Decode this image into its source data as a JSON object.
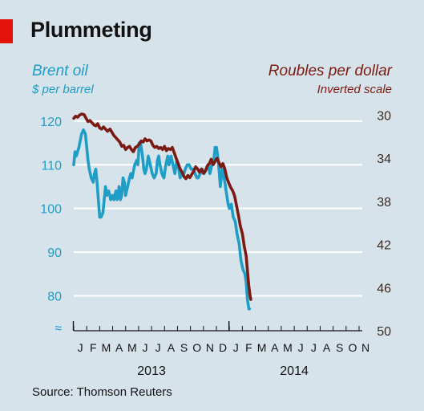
{
  "title": "Plummeting",
  "source": "Source: Thomson Reuters",
  "chart_data": {
    "type": "line",
    "left_axis": {
      "label": "Brent oil",
      "sublabel": "$ per barrel",
      "ticks": [
        80,
        90,
        100,
        110,
        120
      ],
      "range": [
        72,
        122
      ]
    },
    "right_axis": {
      "label": "Roubles per dollar",
      "sublabel": "Inverted scale",
      "ticks": [
        30,
        34,
        38,
        42,
        46,
        50
      ],
      "range": [
        29.75,
        50
      ],
      "inverted": true
    },
    "x_months": [
      "J",
      "F",
      "M",
      "A",
      "M",
      "J",
      "J",
      "A",
      "S",
      "O",
      "N",
      "D",
      "J",
      "F",
      "M",
      "A",
      "M",
      "J",
      "J",
      "A",
      "S",
      "O",
      "N"
    ],
    "years": [
      "2013",
      "2014"
    ],
    "grid": true,
    "colors": {
      "brent": "#1e9dc6",
      "rouble": "#7a1a12"
    },
    "series": [
      {
        "axis": "left",
        "values": [
          [
            0.0,
            110
          ],
          [
            0.1,
            113
          ],
          [
            0.2,
            112
          ],
          [
            0.4,
            114
          ],
          [
            0.6,
            117
          ],
          [
            0.75,
            118
          ],
          [
            0.9,
            117
          ],
          [
            1.0,
            114
          ],
          [
            1.1,
            111
          ],
          [
            1.2,
            109
          ],
          [
            1.35,
            107
          ],
          [
            1.5,
            106
          ],
          [
            1.6,
            108
          ],
          [
            1.7,
            109
          ],
          [
            1.8,
            106
          ],
          [
            1.9,
            102
          ],
          [
            2.0,
            98
          ],
          [
            2.1,
            98
          ],
          [
            2.25,
            99
          ],
          [
            2.35,
            102
          ],
          [
            2.45,
            105
          ],
          [
            2.55,
            103
          ],
          [
            2.7,
            104
          ],
          [
            2.85,
            102
          ],
          [
            3.0,
            103
          ],
          [
            3.1,
            102
          ],
          [
            3.25,
            104
          ],
          [
            3.35,
            102
          ],
          [
            3.5,
            105
          ],
          [
            3.6,
            102
          ],
          [
            3.7,
            103
          ],
          [
            3.8,
            107
          ],
          [
            3.9,
            106
          ],
          [
            4.0,
            103
          ],
          [
            4.15,
            105
          ],
          [
            4.3,
            107
          ],
          [
            4.4,
            108
          ],
          [
            4.5,
            107
          ],
          [
            4.7,
            110
          ],
          [
            4.85,
            111
          ],
          [
            4.95,
            110
          ],
          [
            5.05,
            115
          ],
          [
            5.15,
            115
          ],
          [
            5.3,
            112
          ],
          [
            5.4,
            109
          ],
          [
            5.5,
            108
          ],
          [
            5.6,
            109
          ],
          [
            5.75,
            112
          ],
          [
            5.9,
            110
          ],
          [
            6.05,
            108
          ],
          [
            6.2,
            107
          ],
          [
            6.35,
            108
          ],
          [
            6.45,
            111
          ],
          [
            6.55,
            112
          ],
          [
            6.65,
            110
          ],
          [
            6.8,
            108
          ],
          [
            6.95,
            107
          ],
          [
            7.1,
            110
          ],
          [
            7.25,
            112
          ],
          [
            7.35,
            110
          ],
          [
            7.5,
            112
          ],
          [
            7.65,
            110
          ],
          [
            7.8,
            108
          ],
          [
            7.95,
            111
          ],
          [
            8.1,
            109
          ],
          [
            8.2,
            107
          ],
          [
            8.35,
            108
          ],
          [
            8.5,
            108
          ],
          [
            8.6,
            109
          ],
          [
            8.75,
            110
          ],
          [
            8.9,
            110
          ],
          [
            9.05,
            109
          ],
          [
            9.2,
            109
          ],
          [
            9.35,
            108
          ],
          [
            9.5,
            107
          ],
          [
            9.6,
            107
          ],
          [
            9.75,
            108
          ],
          [
            9.9,
            109
          ],
          [
            10.05,
            108
          ],
          [
            10.2,
            109
          ],
          [
            10.35,
            110
          ],
          [
            10.5,
            108
          ],
          [
            10.65,
            110
          ],
          [
            10.8,
            111
          ],
          [
            10.9,
            114
          ],
          [
            11.0,
            114
          ],
          [
            11.1,
            112
          ],
          [
            11.2,
            109
          ],
          [
            11.3,
            105
          ],
          [
            11.45,
            109
          ],
          [
            11.6,
            107
          ],
          [
            11.75,
            104
          ],
          [
            11.9,
            101
          ],
          [
            12.0,
            100
          ],
          [
            12.15,
            101
          ],
          [
            12.3,
            98
          ],
          [
            12.45,
            97
          ],
          [
            12.6,
            94
          ],
          [
            12.75,
            92
          ],
          [
            12.9,
            88
          ],
          [
            13.05,
            86
          ],
          [
            13.2,
            85
          ],
          [
            13.3,
            83
          ],
          [
            13.4,
            79
          ],
          [
            13.5,
            77
          ],
          [
            13.55,
            77
          ]
        ]
      },
      {
        "axis": "right",
        "values": [
          [
            0.0,
            30.3
          ],
          [
            0.15,
            30.1
          ],
          [
            0.3,
            30.2
          ],
          [
            0.45,
            30.0
          ],
          [
            0.6,
            29.9
          ],
          [
            0.8,
            29.95
          ],
          [
            0.95,
            30.3
          ],
          [
            1.1,
            30.6
          ],
          [
            1.25,
            30.5
          ],
          [
            1.4,
            30.7
          ],
          [
            1.55,
            30.9
          ],
          [
            1.7,
            31.0
          ],
          [
            1.85,
            30.8
          ],
          [
            2.0,
            31.2
          ],
          [
            2.15,
            31.3
          ],
          [
            2.3,
            31.1
          ],
          [
            2.45,
            31.3
          ],
          [
            2.6,
            31.5
          ],
          [
            2.8,
            31.3
          ],
          [
            2.95,
            31.6
          ],
          [
            3.1,
            31.9
          ],
          [
            3.25,
            32.1
          ],
          [
            3.4,
            32.3
          ],
          [
            3.55,
            32.5
          ],
          [
            3.7,
            32.9
          ],
          [
            3.85,
            32.8
          ],
          [
            4.0,
            33.2
          ],
          [
            4.15,
            33.0
          ],
          [
            4.3,
            32.9
          ],
          [
            4.45,
            33.2
          ],
          [
            4.6,
            33.4
          ],
          [
            4.75,
            33.0
          ],
          [
            4.9,
            32.9
          ],
          [
            5.05,
            32.7
          ],
          [
            5.2,
            32.4
          ],
          [
            5.35,
            32.5
          ],
          [
            5.5,
            32.2
          ],
          [
            5.65,
            32.4
          ],
          [
            5.8,
            32.3
          ],
          [
            5.95,
            32.4
          ],
          [
            6.1,
            32.8
          ],
          [
            6.25,
            33.0
          ],
          [
            6.4,
            32.9
          ],
          [
            6.55,
            33.1
          ],
          [
            6.7,
            33.0
          ],
          [
            6.85,
            33.2
          ],
          [
            7.0,
            32.9
          ],
          [
            7.15,
            33.3
          ],
          [
            7.3,
            33.1
          ],
          [
            7.45,
            33.2
          ],
          [
            7.6,
            33.0
          ],
          [
            7.75,
            33.5
          ],
          [
            7.9,
            34.0
          ],
          [
            8.05,
            34.5
          ],
          [
            8.2,
            35.0
          ],
          [
            8.35,
            35.3
          ],
          [
            8.5,
            35.7
          ],
          [
            8.65,
            35.9
          ],
          [
            8.8,
            35.6
          ],
          [
            8.95,
            35.8
          ],
          [
            9.1,
            35.5
          ],
          [
            9.25,
            35.2
          ],
          [
            9.4,
            34.8
          ],
          [
            9.55,
            35.0
          ],
          [
            9.7,
            35.3
          ],
          [
            9.85,
            35.0
          ],
          [
            10.0,
            35.4
          ],
          [
            10.15,
            35.2
          ],
          [
            10.3,
            34.7
          ],
          [
            10.45,
            34.5
          ],
          [
            10.6,
            34.1
          ],
          [
            10.75,
            34.6
          ],
          [
            10.9,
            34.3
          ],
          [
            11.05,
            34.0
          ],
          [
            11.2,
            34.4
          ],
          [
            11.35,
            34.8
          ],
          [
            11.5,
            34.5
          ],
          [
            11.65,
            35.0
          ],
          [
            11.8,
            35.8
          ],
          [
            11.95,
            36.3
          ],
          [
            12.1,
            36.7
          ],
          [
            12.25,
            37.0
          ],
          [
            12.4,
            37.5
          ],
          [
            12.55,
            38.4
          ],
          [
            12.7,
            39.3
          ],
          [
            12.85,
            40.3
          ],
          [
            13.0,
            41.0
          ],
          [
            13.15,
            42.2
          ],
          [
            13.3,
            43.1
          ],
          [
            13.4,
            44.5
          ],
          [
            13.5,
            45.9
          ],
          [
            13.6,
            46.8
          ],
          [
            13.65,
            47.1
          ]
        ]
      }
    ]
  }
}
